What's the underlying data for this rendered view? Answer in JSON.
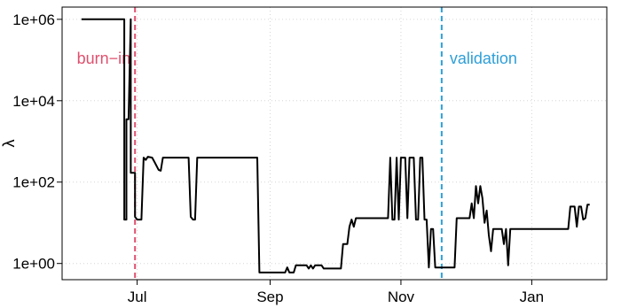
{
  "chart_data": {
    "type": "line",
    "ylabel": "λ",
    "xlabel": "",
    "y_scale": "log10",
    "ylim": [
      0.4,
      2000000
    ],
    "xlim": [
      "2023-05-27",
      "2024-02-05"
    ],
    "grid": true,
    "x_ticks": [
      {
        "date": "2023-07-01",
        "label": "Jul"
      },
      {
        "date": "2023-09-01",
        "label": "Sep"
      },
      {
        "date": "2023-11-01",
        "label": "Nov"
      },
      {
        "date": "2024-01-01",
        "label": "Jan"
      }
    ],
    "y_ticks": [
      {
        "value": 1,
        "label": "1e+00"
      },
      {
        "value": 100,
        "label": "1e+02"
      },
      {
        "value": 10000,
        "label": "1e+04"
      },
      {
        "value": 1000000,
        "label": "1e+06"
      }
    ],
    "vlines": [
      {
        "date": "2023-06-30",
        "label": "burn−in",
        "color": "#e0506e"
      },
      {
        "date": "2023-11-20",
        "label": "validation",
        "color": "#2e9fd8"
      }
    ],
    "series": [
      {
        "color": "#000000",
        "points": [
          [
            "2023-06-05",
            1000000
          ],
          [
            "2023-06-12",
            1000000
          ],
          [
            "2023-06-13",
            1000000
          ],
          [
            "2023-06-25",
            1000000
          ],
          [
            "2023-06-25",
            12
          ],
          [
            "2023-06-26",
            12
          ],
          [
            "2023-06-26",
            3500
          ],
          [
            "2023-06-27",
            3500
          ],
          [
            "2023-06-28",
            1000000
          ],
          [
            "2023-06-28",
            170
          ],
          [
            "2023-06-29",
            170
          ],
          [
            "2023-06-30",
            170
          ],
          [
            "2023-06-30",
            14
          ],
          [
            "2023-07-01",
            12
          ],
          [
            "2023-07-03",
            12
          ],
          [
            "2023-07-04",
            400
          ],
          [
            "2023-07-05",
            350
          ],
          [
            "2023-07-06",
            420
          ],
          [
            "2023-07-08",
            400
          ],
          [
            "2023-07-09",
            320
          ],
          [
            "2023-07-11",
            200
          ],
          [
            "2023-07-12",
            190
          ],
          [
            "2023-07-13",
            400
          ],
          [
            "2023-07-25",
            400
          ],
          [
            "2023-07-26",
            14
          ],
          [
            "2023-07-27",
            12
          ],
          [
            "2023-07-28",
            12
          ],
          [
            "2023-07-29",
            400
          ],
          [
            "2023-08-26",
            400
          ],
          [
            "2023-08-27",
            0.6
          ],
          [
            "2023-09-08",
            0.6
          ],
          [
            "2023-09-09",
            0.8
          ],
          [
            "2023-09-10",
            0.6
          ],
          [
            "2023-09-12",
            0.6
          ],
          [
            "2023-09-13",
            0.9
          ],
          [
            "2023-09-18",
            0.9
          ],
          [
            "2023-09-19",
            0.75
          ],
          [
            "2023-09-20",
            0.9
          ],
          [
            "2023-09-21",
            0.75
          ],
          [
            "2023-09-22",
            0.9
          ],
          [
            "2023-09-25",
            0.9
          ],
          [
            "2023-09-26",
            0.75
          ],
          [
            "2023-10-04",
            0.75
          ],
          [
            "2023-10-05",
            3
          ],
          [
            "2023-10-07",
            3
          ],
          [
            "2023-10-08",
            8
          ],
          [
            "2023-10-09",
            12
          ],
          [
            "2023-10-10",
            8
          ],
          [
            "2023-10-11",
            13
          ],
          [
            "2023-10-26",
            13
          ],
          [
            "2023-10-27",
            400
          ],
          [
            "2023-10-28",
            12
          ],
          [
            "2023-10-29",
            12
          ],
          [
            "2023-10-30",
            400
          ],
          [
            "2023-10-31",
            12
          ],
          [
            "2023-11-01",
            400
          ],
          [
            "2023-11-03",
            400
          ],
          [
            "2023-11-04",
            13
          ],
          [
            "2023-11-05",
            400
          ],
          [
            "2023-11-07",
            400
          ],
          [
            "2023-11-08",
            12
          ],
          [
            "2023-11-09",
            12
          ],
          [
            "2023-11-10",
            400
          ],
          [
            "2023-11-11",
            400
          ],
          [
            "2023-11-12",
            12
          ],
          [
            "2023-11-13",
            12
          ],
          [
            "2023-11-14",
            0.8
          ],
          [
            "2023-11-15",
            7
          ],
          [
            "2023-11-16",
            7
          ],
          [
            "2023-11-17",
            0.8
          ],
          [
            "2023-11-26",
            0.8
          ],
          [
            "2023-11-27",
            13
          ],
          [
            "2023-12-03",
            13
          ],
          [
            "2023-12-04",
            30
          ],
          [
            "2023-12-05",
            13
          ],
          [
            "2023-12-06",
            80
          ],
          [
            "2023-12-07",
            30
          ],
          [
            "2023-12-08",
            80
          ],
          [
            "2023-12-09",
            40
          ],
          [
            "2023-12-10",
            10
          ],
          [
            "2023-12-11",
            20
          ],
          [
            "2023-12-12",
            5
          ],
          [
            "2023-12-13",
            2
          ],
          [
            "2023-12-14",
            7
          ],
          [
            "2023-12-18",
            7
          ],
          [
            "2023-12-19",
            3
          ],
          [
            "2023-12-20",
            7
          ],
          [
            "2023-12-21",
            0.9
          ],
          [
            "2023-12-22",
            7
          ],
          [
            "2024-01-18",
            7
          ],
          [
            "2024-01-19",
            25
          ],
          [
            "2024-01-21",
            25
          ],
          [
            "2024-01-22",
            8
          ],
          [
            "2024-01-23",
            25
          ],
          [
            "2024-01-24",
            25
          ],
          [
            "2024-01-25",
            12
          ],
          [
            "2024-01-26",
            13
          ],
          [
            "2024-01-27",
            28
          ],
          [
            "2024-01-28",
            28
          ]
        ]
      }
    ]
  }
}
